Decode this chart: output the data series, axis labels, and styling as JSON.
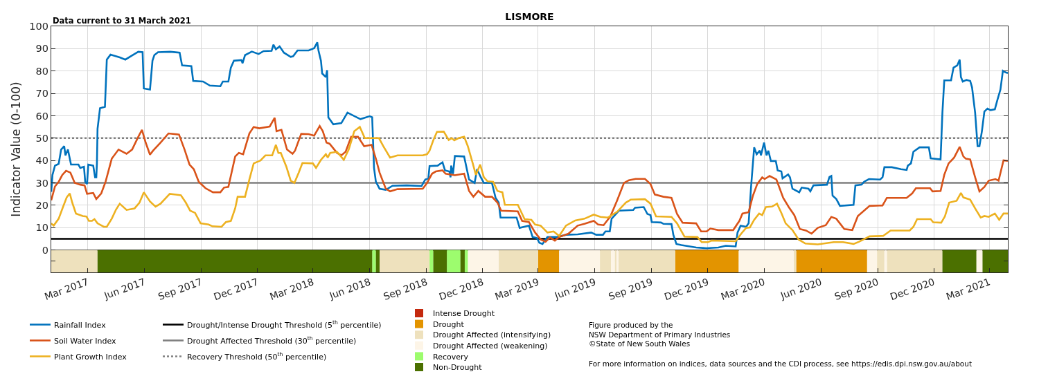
{
  "chart_data": {
    "type": "line",
    "title": "LISMORE",
    "subtitle": "Data current to 31 March 2021",
    "ylabel": "Indicator Value (0-100)",
    "annotations": [
      "Figure produced by the\nNSW Department of Primary Industries\n©State of New South Wales",
      "For more information on indices, data sources and the CDI process, see https://edis.dpi.nsw.gov.au/about"
    ],
    "xlim": [
      "2017-01-01",
      "2021-03-31"
    ],
    "xticks": [
      {
        "value": "2017-03-01",
        "label": "Mar 2017"
      },
      {
        "value": "2017-06-01",
        "label": "Jun 2017"
      },
      {
        "value": "2017-09-01",
        "label": "Sep 2017"
      },
      {
        "value": "2017-12-01",
        "label": "Dec 2017"
      },
      {
        "value": "2018-03-01",
        "label": "Mar 2018"
      },
      {
        "value": "2018-06-01",
        "label": "Jun 2018"
      },
      {
        "value": "2018-09-01",
        "label": "Sep 2018"
      },
      {
        "value": "2018-12-01",
        "label": "Dec 2018"
      },
      {
        "value": "2019-03-01",
        "label": "Mar 2019"
      },
      {
        "value": "2019-06-01",
        "label": "Jun 2019"
      },
      {
        "value": "2019-09-01",
        "label": "Sep 2019"
      },
      {
        "value": "2019-12-01",
        "label": "Dec 2019"
      },
      {
        "value": "2020-03-01",
        "label": "Mar 2020"
      },
      {
        "value": "2020-06-01",
        "label": "Jun 2020"
      },
      {
        "value": "2020-09-01",
        "label": "Sep 2020"
      },
      {
        "value": "2020-12-01",
        "label": "Dec 2020"
      },
      {
        "value": "2021-03-01",
        "label": "Mar 2021"
      }
    ],
    "ylim": [
      -10,
      100
    ],
    "yticks": [
      {
        "value": -5,
        "label": null
      },
      0,
      10,
      20,
      30,
      40,
      50,
      60,
      70,
      80,
      90,
      100
    ],
    "grid": true,
    "legend": "bottom",
    "line_style": "solid",
    "series": [
      {
        "name": "Rainfall Index",
        "color": "#0072bd",
        "x": [
          "2017-01-01",
          "2017-01-03",
          "2017-01-07",
          "2017-01-13",
          "2017-01-17",
          "2017-01-22",
          "2017-01-24",
          "2017-01-28",
          "2017-02-02",
          "2017-02-14",
          "2017-02-17",
          "2017-02-23",
          "2017-02-25",
          "2017-02-28",
          "2017-03-02",
          "2017-03-10",
          "2017-03-13",
          "2017-03-15",
          "2017-03-16",
          "2017-03-17",
          "2017-03-21",
          "2017-03-29",
          "2017-04-01",
          "2017-04-07",
          "2017-04-22",
          "2017-05-01",
          "2017-05-14",
          "2017-05-22",
          "2017-05-29",
          "2017-05-31",
          "2017-06-10",
          "2017-06-14",
          "2017-06-17",
          "2017-06-23",
          "2017-07-13",
          "2017-07-28",
          "2017-08-01",
          "2017-08-16",
          "2017-08-19",
          "2017-09-04",
          "2017-09-15",
          "2017-10-02",
          "2017-10-06",
          "2017-10-15",
          "2017-10-19",
          "2017-10-24",
          "2017-11-05",
          "2017-11-07",
          "2017-11-11",
          "2017-11-22",
          "2017-12-03",
          "2017-12-11",
          "2017-12-24",
          "2017-12-27",
          "2017-12-31",
          "2018-01-06",
          "2018-01-13",
          "2018-01-24",
          "2018-01-28",
          "2018-02-04",
          "2018-02-22",
          "2018-03-03",
          "2018-03-08",
          "2018-03-10",
          "2018-03-14",
          "2018-03-16",
          "2018-03-22",
          "2018-03-24",
          "2018-03-26",
          "2018-04-03",
          "2018-04-16",
          "2018-04-26",
          "2018-05-17",
          "2018-06-01",
          "2018-06-05",
          "2018-06-08",
          "2018-06-11",
          "2018-06-17",
          "2018-06-27",
          "2018-07-08",
          "2018-07-31",
          "2018-08-24",
          "2018-08-30",
          "2018-09-04",
          "2018-09-06",
          "2018-09-19",
          "2018-09-27",
          "2018-10-01",
          "2018-10-08",
          "2018-10-10",
          "2018-10-11",
          "2018-10-14",
          "2018-10-17",
          "2018-11-01",
          "2018-11-09",
          "2018-11-18",
          "2018-11-22",
          "2018-11-28",
          "2018-12-03",
          "2018-12-16",
          "2018-12-22",
          "2018-12-27",
          "2018-12-30",
          "2019-01-25",
          "2019-01-30",
          "2019-02-14",
          "2019-02-20",
          "2019-02-27",
          "2019-03-03",
          "2019-03-08",
          "2019-03-16",
          "2019-04-01",
          "2019-04-15",
          "2019-05-04",
          "2019-05-26",
          "2019-06-03",
          "2019-06-14",
          "2019-06-18",
          "2019-06-25",
          "2019-06-28",
          "2019-07-10",
          "2019-08-02",
          "2019-08-05",
          "2019-08-19",
          "2019-08-25",
          "2019-08-30",
          "2019-09-01",
          "2019-09-16",
          "2019-09-20",
          "2019-10-03",
          "2019-10-06",
          "2019-10-11",
          "2019-10-19",
          "2019-11-12",
          "2019-11-29",
          "2019-12-18",
          "2019-12-30",
          "2020-01-15",
          "2020-01-18",
          "2020-01-23",
          "2020-02-01",
          "2020-02-05",
          "2020-02-09",
          "2020-02-14",
          "2020-02-18",
          "2020-02-23",
          "2020-02-25",
          "2020-03-01",
          "2020-03-05",
          "2020-03-08",
          "2020-03-12",
          "2020-03-20",
          "2020-03-23",
          "2020-03-29",
          "2020-03-31",
          "2020-04-09",
          "2020-04-12",
          "2020-04-16",
          "2020-04-27",
          "2020-05-01",
          "2020-05-12",
          "2020-05-15",
          "2020-05-20",
          "2020-06-11",
          "2020-06-15",
          "2020-06-18",
          "2020-06-20",
          "2020-06-26",
          "2020-07-02",
          "2020-07-24",
          "2020-07-27",
          "2020-08-06",
          "2020-08-10",
          "2020-08-18",
          "2020-09-05",
          "2020-09-09",
          "2020-09-12",
          "2020-09-24",
          "2020-10-09",
          "2020-10-18",
          "2020-10-20",
          "2020-10-25",
          "2020-10-29",
          "2020-11-08",
          "2020-11-23",
          "2020-11-26",
          "2020-12-12",
          "2020-12-15",
          "2020-12-18",
          "2020-12-29",
          "2021-01-02",
          "2021-01-08",
          "2021-01-12",
          "2021-01-14",
          "2021-01-17",
          "2021-01-23",
          "2021-01-29",
          "2021-02-01",
          "2021-02-06",
          "2021-02-10",
          "2021-02-13",
          "2021-02-17",
          "2021-02-21",
          "2021-02-26",
          "2021-03-03",
          "2021-03-10",
          "2021-03-14",
          "2021-03-19",
          "2021-03-23",
          "2021-03-27",
          "2021-03-31"
        ],
        "values": [
          26,
          33.6,
          37.7,
          38.5,
          44.9,
          46.4,
          42.3,
          44.9,
          38.2,
          38.2,
          36.7,
          37.2,
          30.5,
          29.5,
          38.2,
          37.7,
          32.5,
          32.5,
          38.7,
          54.2,
          63.4,
          64,
          85.1,
          87.3,
          86.1,
          85.1,
          87.3,
          88.6,
          88.4,
          72.2,
          71.7,
          84.6,
          87.1,
          88.4,
          88.6,
          88.2,
          82.5,
          82.2,
          75.6,
          75.3,
          73.5,
          73.2,
          75.3,
          75.3,
          81.5,
          84.6,
          84.9,
          83.5,
          87.1,
          88.7,
          87.6,
          88.9,
          89,
          91.8,
          89.7,
          91,
          88.2,
          86.3,
          86.6,
          89.2,
          89.2,
          90.2,
          92.8,
          89.2,
          84.6,
          78.9,
          77.3,
          80.4,
          59.3,
          56.2,
          56.7,
          61.4,
          58.5,
          59.8,
          59.3,
          36.7,
          30.5,
          27.4,
          26.9,
          28.7,
          28.9,
          28.6,
          31.5,
          32,
          37.5,
          37.7,
          39.2,
          35.6,
          35.1,
          32.5,
          37.7,
          34,
          42,
          41.8,
          31.5,
          30,
          36.1,
          32.5,
          30,
          30,
          23.3,
          21.2,
          14.5,
          14.5,
          9.9,
          10.9,
          5.8,
          5.3,
          3.2,
          2.7,
          5.8,
          5.8,
          6.8,
          7,
          7.8,
          6.8,
          6.8,
          8.3,
          8.3,
          14,
          17.6,
          17.9,
          18.9,
          19.2,
          16.1,
          15.6,
          12.5,
          12.3,
          11.7,
          11.6,
          6.8,
          2.7,
          2.2,
          1.1,
          0.8,
          1.1,
          1.9,
          1.6,
          7.8,
          10.9,
          10.4,
          11.9,
          28.4,
          45.9,
          42.8,
          44.4,
          42.3,
          48,
          42.3,
          44.4,
          39.8,
          39.8,
          35.6,
          35.1,
          32,
          33.8,
          32.5,
          27.4,
          25.8,
          27.9,
          27.4,
          26.2,
          28.9,
          29.2,
          32.7,
          33.1,
          24.3,
          22.8,
          19.7,
          20.2,
          28.9,
          29.2,
          30.5,
          31.7,
          31.5,
          32.5,
          37,
          37,
          36.1,
          35.8,
          37.7,
          38.7,
          43.9,
          45.9,
          45.9,
          41,
          40.5,
          61.4,
          75.8,
          75.8,
          81.5,
          82.5,
          85.1,
          77.3,
          75.3,
          76,
          75.6,
          72.7,
          61.4,
          46.4,
          46.4,
          53.1,
          61.9,
          63.2,
          62.5,
          62.9,
          67,
          71.7,
          80.1,
          79.4,
          79.1
        ]
      },
      {
        "name": "Soil Water Index",
        "color": "#d95319",
        "x": [
          "2017-01-01",
          "2017-01-07",
          "2017-01-13",
          "2017-01-19",
          "2017-01-25",
          "2017-02-01",
          "2017-02-08",
          "2017-02-17",
          "2017-02-24",
          "2017-02-28",
          "2017-03-10",
          "2017-03-15",
          "2017-03-23",
          "2017-03-30",
          "2017-04-09",
          "2017-04-20",
          "2017-05-03",
          "2017-05-12",
          "2017-05-22",
          "2017-05-28",
          "2017-06-03",
          "2017-06-10",
          "2017-06-15",
          "2017-06-27",
          "2017-07-10",
          "2017-07-27",
          "2017-08-05",
          "2017-08-13",
          "2017-08-20",
          "2017-08-28",
          "2017-09-08",
          "2017-09-20",
          "2017-10-02",
          "2017-10-08",
          "2017-10-15",
          "2017-10-26",
          "2017-11-01",
          "2017-11-08",
          "2017-11-18",
          "2017-11-25",
          "2017-12-04",
          "2017-12-21",
          "2017-12-29",
          "2018-01-01",
          "2018-01-09",
          "2018-01-18",
          "2018-01-27",
          "2018-01-31",
          "2018-02-10",
          "2018-02-22",
          "2018-03-03",
          "2018-03-12",
          "2018-03-17",
          "2018-03-23",
          "2018-03-28",
          "2018-04-09",
          "2018-04-16",
          "2018-04-23",
          "2018-05-02",
          "2018-05-13",
          "2018-05-23",
          "2018-06-04",
          "2018-06-11",
          "2018-06-17",
          "2018-06-27",
          "2018-07-04",
          "2018-07-16",
          "2018-08-26",
          "2018-09-02",
          "2018-09-10",
          "2018-09-16",
          "2018-09-27",
          "2018-10-02",
          "2018-10-17",
          "2018-11-01",
          "2018-11-09",
          "2018-11-16",
          "2018-11-24",
          "2018-12-05",
          "2018-12-16",
          "2018-12-25",
          "2018-12-31",
          "2019-01-27",
          "2019-02-03",
          "2019-02-14",
          "2019-02-24",
          "2019-03-05",
          "2019-03-13",
          "2019-03-20",
          "2019-03-28",
          "2019-04-04",
          "2019-04-19",
          "2019-05-04",
          "2019-05-15",
          "2019-05-30",
          "2019-06-06",
          "2019-06-15",
          "2019-06-26",
          "2019-07-07",
          "2019-07-18",
          "2019-07-26",
          "2019-08-06",
          "2019-08-21",
          "2019-08-30",
          "2019-09-06",
          "2019-09-20",
          "2019-10-03",
          "2019-10-12",
          "2019-10-21",
          "2019-11-12",
          "2019-11-20",
          "2019-11-29",
          "2019-12-05",
          "2019-12-18",
          "2020-01-11",
          "2020-01-21",
          "2020-01-26",
          "2020-02-05",
          "2020-02-12",
          "2020-02-19",
          "2020-02-27",
          "2020-03-02",
          "2020-03-10",
          "2020-03-21",
          "2020-04-01",
          "2020-04-10",
          "2020-04-19",
          "2020-04-28",
          "2020-05-08",
          "2020-05-17",
          "2020-05-27",
          "2020-06-09",
          "2020-06-18",
          "2020-06-26",
          "2020-07-09",
          "2020-07-22",
          "2020-07-31",
          "2020-08-10",
          "2020-08-19",
          "2020-09-09",
          "2020-09-16",
          "2020-10-18",
          "2020-10-27",
          "2020-11-02",
          "2020-11-25",
          "2020-11-29",
          "2020-12-12",
          "2020-12-18",
          "2020-12-25",
          "2021-01-03",
          "2021-01-12",
          "2021-01-18",
          "2021-01-22",
          "2021-01-29",
          "2021-02-06",
          "2021-02-13",
          "2021-02-21",
          "2021-02-28",
          "2021-03-11",
          "2021-03-16",
          "2021-03-24",
          "2021-03-31"
        ],
        "values": [
          22.2,
          28.4,
          30.5,
          33.6,
          35.4,
          34.6,
          30,
          29.2,
          28.9,
          25.1,
          25.5,
          22.8,
          25.3,
          30.5,
          40.8,
          44.9,
          43,
          44.9,
          50.6,
          53.7,
          48,
          42.6,
          44.4,
          48,
          52.1,
          51.6,
          44.9,
          38.2,
          36.1,
          30.5,
          27.6,
          25.8,
          25.8,
          27.9,
          28.2,
          41.8,
          43.4,
          42.8,
          52.1,
          55,
          54.4,
          55.2,
          59.1,
          53.1,
          53.7,
          44.9,
          43,
          44.4,
          51.9,
          51.8,
          51.1,
          55.4,
          53.1,
          48,
          47.5,
          43.4,
          42.3,
          43.9,
          50.6,
          50.6,
          46.4,
          47,
          40.8,
          34.6,
          27.4,
          26.2,
          27.2,
          27.4,
          30,
          34.1,
          35.1,
          35.6,
          34.1,
          33.4,
          34.1,
          26.4,
          23.8,
          26.4,
          23.8,
          23.8,
          21.2,
          17.6,
          17.3,
          13,
          12.5,
          7.8,
          4.7,
          3.7,
          5.6,
          4.2,
          5.8,
          7.3,
          10.9,
          11.7,
          13,
          11.4,
          11.1,
          15,
          22.2,
          30,
          31.2,
          31.8,
          31.8,
          29.5,
          24.8,
          23.8,
          23.3,
          16.1,
          12.2,
          11.9,
          8.3,
          8.3,
          9.6,
          8.9,
          8.9,
          13,
          16.3,
          16.9,
          24.3,
          29.5,
          32.5,
          31.7,
          33.1,
          31.5,
          23.3,
          19.2,
          15.6,
          9.4,
          8.7,
          7.3,
          9.9,
          11.1,
          14.8,
          14,
          9.4,
          8.9,
          15.2,
          17.6,
          19.7,
          19.9,
          23.3,
          23.3,
          25.3,
          27.6,
          27.6,
          26.2,
          26.4,
          33.6,
          38.7,
          41.3,
          46.1,
          41.8,
          40.8,
          40.5,
          32.5,
          26.2,
          28.2,
          31,
          31.7,
          31,
          40.1,
          39.8
        ]
      },
      {
        "name": "Plant Growth Index",
        "color": "#edb120",
        "x": [
          "2017-01-01",
          "2017-01-05",
          "2017-01-13",
          "2017-01-20",
          "2017-01-26",
          "2017-01-31",
          "2017-02-04",
          "2017-02-10",
          "2017-02-21",
          "2017-02-27",
          "2017-03-03",
          "2017-03-08",
          "2017-03-12",
          "2017-03-17",
          "2017-03-27",
          "2017-04-01",
          "2017-04-09",
          "2017-04-16",
          "2017-04-22",
          "2017-05-03",
          "2017-05-16",
          "2017-05-24",
          "2017-05-31",
          "2017-06-10",
          "2017-06-19",
          "2017-06-27",
          "2017-07-12",
          "2017-07-30",
          "2017-08-07",
          "2017-08-14",
          "2017-08-22",
          "2017-08-31",
          "2017-09-13",
          "2017-09-19",
          "2017-10-04",
          "2017-10-11",
          "2017-10-19",
          "2017-10-26",
          "2017-10-30",
          "2017-11-11",
          "2017-11-18",
          "2017-11-25",
          "2017-12-06",
          "2017-12-14",
          "2017-12-25",
          "2017-12-31",
          "2018-01-04",
          "2018-01-08",
          "2018-01-17",
          "2018-01-24",
          "2018-01-30",
          "2018-02-06",
          "2018-02-12",
          "2018-03-01",
          "2018-03-06",
          "2018-03-14",
          "2018-03-22",
          "2018-03-25",
          "2018-03-29",
          "2018-04-09",
          "2018-04-20",
          "2018-04-28",
          "2018-05-07",
          "2018-05-16",
          "2018-05-24",
          "2018-06-16",
          "2018-06-23",
          "2018-07-04",
          "2018-07-16",
          "2018-08-26",
          "2018-09-02",
          "2018-09-06",
          "2018-09-12",
          "2018-09-18",
          "2018-09-29",
          "2018-10-07",
          "2018-10-12",
          "2018-10-16",
          "2018-10-23",
          "2018-11-01",
          "2018-11-07",
          "2018-11-15",
          "2018-11-20",
          "2018-11-27",
          "2018-12-03",
          "2018-12-09",
          "2018-12-18",
          "2018-12-25",
          "2019-01-02",
          "2019-01-06",
          "2019-01-27",
          "2019-02-03",
          "2019-02-07",
          "2019-02-18",
          "2019-02-24",
          "2019-03-05",
          "2019-03-16",
          "2019-03-26",
          "2019-04-04",
          "2019-04-15",
          "2019-04-30",
          "2019-05-15",
          "2019-05-30",
          "2019-06-10",
          "2019-06-22",
          "2019-07-07",
          "2019-07-21",
          "2019-07-29",
          "2019-08-21",
          "2019-08-30",
          "2019-09-08",
          "2019-10-03",
          "2019-10-12",
          "2019-10-24",
          "2019-11-14",
          "2019-11-21",
          "2019-12-01",
          "2019-12-07",
          "2020-01-15",
          "2020-01-24",
          "2020-02-01",
          "2020-02-07",
          "2020-02-14",
          "2020-02-22",
          "2020-02-27",
          "2020-03-04",
          "2020-03-14",
          "2020-03-22",
          "2020-03-29",
          "2020-04-05",
          "2020-04-16",
          "2020-04-26",
          "2020-05-07",
          "2020-05-27",
          "2020-06-22",
          "2020-07-07",
          "2020-07-24",
          "2020-08-02",
          "2020-08-19",
          "2020-09-10",
          "2020-09-22",
          "2020-10-23",
          "2020-10-29",
          "2020-11-04",
          "2020-11-26",
          "2020-11-30",
          "2020-12-13",
          "2020-12-19",
          "2020-12-26",
          "2021-01-07",
          "2021-01-14",
          "2021-01-18",
          "2021-01-29",
          "2021-02-06",
          "2021-02-15",
          "2021-02-21",
          "2021-02-28",
          "2021-03-10",
          "2021-03-17",
          "2021-03-24",
          "2021-03-31"
        ],
        "values": [
          11.9,
          10.9,
          14,
          19.2,
          23.5,
          25.3,
          21.2,
          16.3,
          15.2,
          15,
          13,
          13,
          13.8,
          11.9,
          10.4,
          10.4,
          14,
          18.1,
          20.7,
          17.9,
          18.6,
          21.2,
          25.8,
          21.7,
          19.4,
          20.7,
          25.1,
          24.5,
          21.2,
          17.6,
          16.6,
          11.9,
          11.4,
          10.6,
          10.4,
          12.5,
          13,
          18.6,
          23.8,
          23.8,
          31.5,
          38.7,
          40,
          42.3,
          42.3,
          47,
          43.4,
          43.4,
          37.2,
          31,
          30,
          34.6,
          38.9,
          38.7,
          36.7,
          40.3,
          42.8,
          41.3,
          43.4,
          43.9,
          40.3,
          44.9,
          53.1,
          55,
          50,
          50,
          46.4,
          41.3,
          42.3,
          42.3,
          42.8,
          44.4,
          49,
          52.8,
          52.9,
          49.2,
          50,
          49,
          50,
          50.6,
          46.4,
          38.7,
          33.6,
          38.2,
          32.5,
          30.7,
          30.5,
          26.4,
          25.8,
          20.2,
          20.2,
          16.1,
          13.8,
          13.5,
          11.4,
          10.9,
          7.8,
          8.3,
          6.3,
          10.9,
          13.2,
          14,
          15.8,
          14.8,
          14.5,
          17.1,
          21.2,
          22.5,
          22.7,
          20.7,
          15,
          14.8,
          11.9,
          6,
          5.8,
          3.5,
          3.5,
          4.2,
          3.9,
          7.3,
          9.9,
          10.1,
          13.5,
          16.3,
          15.6,
          19.2,
          19.4,
          20.7,
          16.6,
          11.9,
          8.9,
          4.7,
          2.9,
          2.5,
          3.5,
          3.5,
          2.7,
          3.7,
          6.1,
          6.3,
          8.7,
          8.7,
          10.4,
          13.8,
          13.8,
          12.4,
          12.2,
          15,
          21.2,
          22,
          25.5,
          23.5,
          22.5,
          18.6,
          14.5,
          15.2,
          14.8,
          16.3,
          13.5,
          16.3,
          16.3
        ]
      },
      {
        "name": "Intense Drought",
        "color": "#c4290e",
        "type": "bar"
      }
    ],
    "ref_lines": [
      {
        "axis": "y",
        "value": 5,
        "label": "Drought/Intense Drought Threshold (5$^{th}$ percentile)",
        "color": "#000000",
        "line_style": "solid"
      },
      {
        "axis": "y",
        "value": 30,
        "label": "Drought Affected Threshold (30$^{th}$ percentile)",
        "color": "#808080",
        "line_style": "solid"
      },
      {
        "axis": "y",
        "value": 50,
        "label": "Recovery Threshold (50$^{th}$ percentile)",
        "color": "#808080",
        "line_style": "dotted"
      }
    ],
    "bands": [
      {
        "axis": "x",
        "from": "2019-03-01",
        "to": "2019-04-04",
        "label": "Drought",
        "color": "#e39400"
      },
      {
        "axis": "x",
        "from": "2019-10-09",
        "to": "2020-01-20",
        "color": "#e39400"
      },
      {
        "axis": "x",
        "from": "2020-04-22",
        "to": "2020-08-15",
        "color": "#e39400"
      },
      {
        "axis": "x",
        "from": "2017-01-01",
        "to": "2017-03-17",
        "label": "Drought Affected (intensifying)",
        "color": "#eee1bd"
      },
      {
        "axis": "x",
        "from": "2018-06-17",
        "to": "2018-09-06",
        "color": "#eee1bd"
      },
      {
        "axis": "x",
        "from": "2018-12-27",
        "to": "2019-03-01",
        "color": "#eee1bd"
      },
      {
        "axis": "x",
        "from": "2019-06-09",
        "to": "2019-06-27",
        "color": "#eee1bd"
      },
      {
        "axis": "x",
        "from": "2019-07-03",
        "to": "2019-07-06",
        "color": "#eee1bd"
      },
      {
        "axis": "x",
        "from": "2019-07-09",
        "to": "2019-10-09",
        "color": "#eee1bd"
      },
      {
        "axis": "x",
        "from": "2020-04-18",
        "to": "2020-04-22",
        "color": "#eee1bd"
      },
      {
        "axis": "x",
        "from": "2020-08-31",
        "to": "2020-09-12",
        "color": "#eee1bd"
      },
      {
        "axis": "x",
        "from": "2020-09-16",
        "to": "2020-12-15",
        "color": "#eee1bd"
      },
      {
        "axis": "x",
        "from": "2018-11-07",
        "to": "2018-12-27",
        "label": "Drought Affected (weakening)",
        "color": "#fdf5e7"
      },
      {
        "axis": "x",
        "from": "2019-04-04",
        "to": "2019-06-09",
        "color": "#fdf5e7"
      },
      {
        "axis": "x",
        "from": "2019-06-27",
        "to": "2019-07-03",
        "color": "#fdf5e7"
      },
      {
        "axis": "x",
        "from": "2019-07-06",
        "to": "2019-07-09",
        "color": "#fdf5e7"
      },
      {
        "axis": "x",
        "from": "2020-01-20",
        "to": "2020-04-18",
        "color": "#fdf5e7"
      },
      {
        "axis": "x",
        "from": "2020-08-15",
        "to": "2020-08-31",
        "color": "#fdf5e7"
      },
      {
        "axis": "x",
        "from": "2020-09-12",
        "to": "2020-09-16",
        "color": "#fdf5e7"
      },
      {
        "axis": "x",
        "from": "2021-02-08",
        "to": "2021-02-18",
        "color": "#fdf5e7"
      },
      {
        "axis": "x",
        "from": "2018-06-05",
        "to": "2018-06-11",
        "label": "Recovery",
        "color": "#9dfc6e"
      },
      {
        "axis": "x",
        "from": "2018-09-06",
        "to": "2018-09-12",
        "color": "#9dfc6e"
      },
      {
        "axis": "x",
        "from": "2018-10-04",
        "to": "2018-10-26",
        "color": "#9dfc6e"
      },
      {
        "axis": "x",
        "from": "2018-11-02",
        "to": "2018-11-07",
        "color": "#9dfc6e"
      },
      {
        "axis": "x",
        "from": "2017-03-17",
        "to": "2018-06-05",
        "label": "Non-Drought",
        "color": "#4b7000"
      },
      {
        "axis": "x",
        "from": "2018-06-11",
        "to": "2018-06-17",
        "color": "#4b7000"
      },
      {
        "axis": "x",
        "from": "2018-09-12",
        "to": "2018-10-04",
        "color": "#4b7000"
      },
      {
        "axis": "x",
        "from": "2018-10-26",
        "to": "2018-11-02",
        "color": "#4b7000"
      },
      {
        "axis": "x",
        "from": "2020-12-15",
        "to": "2021-02-08",
        "color": "#4b7000"
      },
      {
        "axis": "x",
        "from": "2021-02-18",
        "to": "2021-03-31",
        "color": "#4b7000"
      }
    ]
  }
}
